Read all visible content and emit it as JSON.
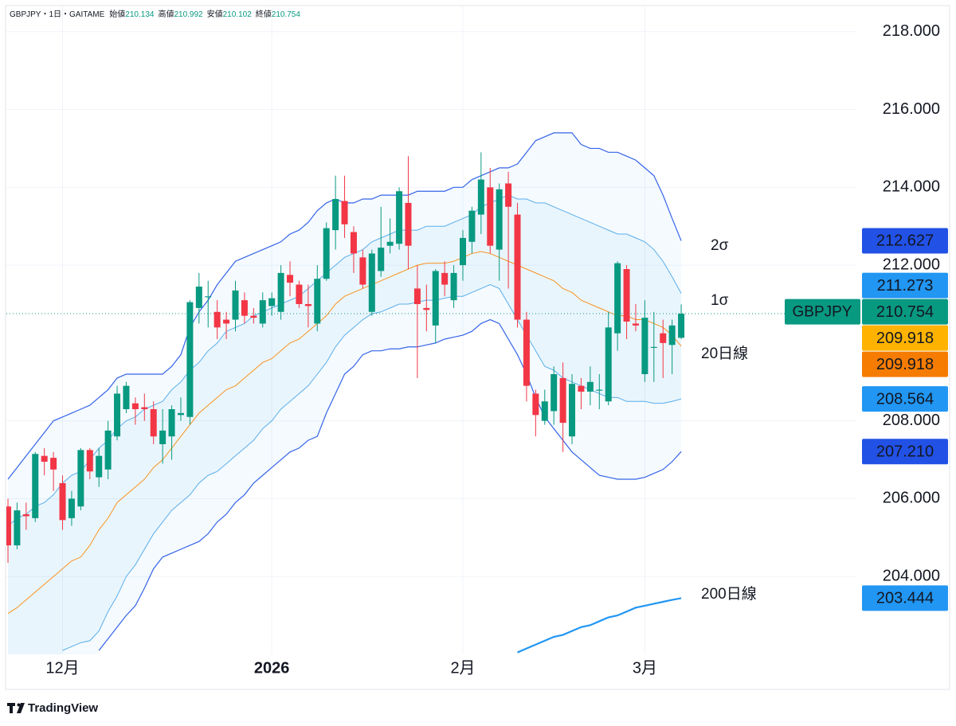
{
  "chart_data": {
    "type": "candlestick",
    "title": "GBPJPY・1日・GAITAME",
    "ohlc_legend": [
      {
        "label": "始値",
        "value": "210.134"
      },
      {
        "label": "高値",
        "value": "210.992"
      },
      {
        "label": "安値",
        "value": "210.102"
      },
      {
        "label": "終値",
        "value": "210.754"
      }
    ],
    "brand": "TradingView",
    "categories": [
      null,
      null,
      null,
      null,
      null,
      null,
      "12月",
      null,
      null,
      null,
      null,
      null,
      null,
      null,
      null,
      null,
      null,
      null,
      null,
      null,
      null,
      null,
      null,
      null,
      null,
      null,
      null,
      null,
      null,
      "2026",
      null,
      null,
      null,
      null,
      null,
      null,
      null,
      null,
      null,
      null,
      null,
      null,
      null,
      null,
      null,
      null,
      null,
      null,
      null,
      null,
      "2月",
      null,
      null,
      null,
      null,
      null,
      null,
      null,
      null,
      null,
      null,
      null,
      null,
      null,
      null,
      null,
      null,
      null,
      null,
      null,
      "3月",
      null,
      null,
      null,
      null
    ],
    "open": [
      205.8,
      204.8,
      205.6,
      205.5,
      207.1,
      207.05,
      206.4,
      205.5,
      205.8,
      207.25,
      206.55,
      206.75,
      207.6,
      208.3,
      208.45,
      208.35,
      208.3,
      207.4,
      207.6,
      208.15,
      208.1,
      210.9,
      211.2,
      210.8,
      210.6,
      210.6,
      211.1,
      210.7,
      210.5,
      210.95,
      210.8,
      211.75,
      211.5,
      211.0,
      210.5,
      211.65,
      212.9,
      213.65,
      212.85,
      212.2,
      210.8,
      211.85,
      212.5,
      212.55,
      213.6,
      211.4,
      210.9,
      210.45,
      211.8,
      211.1,
      212.0,
      212.6,
      213.3,
      214.0,
      212.4,
      214.1,
      213.3,
      210.6,
      208.7,
      208.0,
      208.25,
      209.1,
      207.6,
      208.9,
      208.75,
      208.8,
      208.5,
      210.25,
      211.9,
      210.5,
      209.2,
      209.9,
      210.25,
      209.95,
      210.134
    ],
    "high": [
      206.0,
      205.9,
      205.9,
      207.2,
      207.3,
      207.2,
      206.6,
      206.2,
      207.3,
      207.3,
      207.3,
      208.0,
      208.9,
      209.0,
      208.6,
      208.7,
      208.5,
      208.3,
      208.4,
      208.6,
      211.1,
      211.8,
      211.6,
      211.1,
      210.8,
      211.6,
      211.3,
      210.9,
      211.3,
      211.3,
      212.0,
      212.1,
      211.6,
      211.5,
      212.0,
      213.1,
      214.3,
      214.3,
      213.0,
      212.4,
      212.4,
      213.5,
      213.2,
      214.0,
      214.8,
      212.0,
      211.5,
      211.9,
      212.1,
      212.0,
      212.9,
      213.5,
      214.9,
      214.5,
      214.1,
      214.4,
      213.6,
      210.8,
      208.8,
      208.8,
      209.4,
      209.5,
      209.2,
      209.1,
      209.4,
      209.2,
      210.8,
      212.1,
      212.0,
      211.0,
      211.1,
      210.8,
      210.6,
      210.6,
      210.992
    ],
    "low": [
      204.35,
      204.7,
      205.2,
      205.4,
      206.6,
      206.2,
      205.2,
      205.3,
      205.7,
      206.5,
      206.3,
      206.5,
      207.5,
      208.2,
      207.9,
      208.0,
      207.4,
      206.9,
      207.0,
      208.0,
      207.9,
      210.5,
      210.4,
      210.1,
      210.1,
      210.3,
      210.5,
      210.5,
      210.4,
      210.7,
      210.6,
      211.2,
      210.9,
      210.4,
      210.3,
      211.6,
      212.4,
      212.7,
      211.8,
      211.4,
      210.7,
      211.7,
      212.3,
      212.4,
      211.9,
      209.1,
      210.3,
      210.0,
      211.2,
      210.9,
      211.6,
      212.3,
      212.8,
      212.3,
      211.6,
      211.4,
      210.4,
      208.5,
      207.6,
      207.9,
      207.9,
      207.2,
      207.4,
      208.3,
      208.4,
      208.3,
      208.4,
      209.8,
      210.1,
      210.3,
      209.0,
      209.0,
      209.1,
      209.2,
      210.102
    ],
    "close": [
      204.8,
      205.7,
      205.55,
      207.15,
      206.95,
      206.75,
      205.45,
      206.0,
      207.25,
      206.7,
      207.1,
      207.75,
      208.7,
      208.9,
      208.3,
      208.3,
      207.6,
      207.75,
      208.3,
      208.2,
      211.05,
      211.45,
      211.2,
      210.4,
      210.5,
      211.35,
      210.7,
      210.65,
      211.1,
      211.15,
      211.8,
      211.55,
      211.0,
      210.95,
      211.65,
      212.95,
      213.7,
      213.05,
      212.3,
      211.5,
      212.3,
      212.45,
      212.6,
      213.9,
      212.5,
      211.0,
      210.85,
      211.85,
      211.5,
      211.8,
      212.7,
      213.4,
      214.2,
      212.5,
      213.95,
      213.5,
      210.6,
      208.9,
      208.15,
      208.5,
      209.2,
      207.95,
      208.95,
      208.75,
      209.0,
      208.8,
      210.4,
      212.05,
      210.55,
      210.45,
      210.65,
      209.9,
      210.0,
      210.45,
      210.754
    ],
    "up_color": "#089981",
    "down_color": "#f23645",
    "series": [
      {
        "color": "#3563e9",
        "width": 1.2,
        "values": [
          206.5,
          206.8,
          207.1,
          207.4,
          207.7,
          208.0,
          208.1,
          208.2,
          208.3,
          208.4,
          208.6,
          208.8,
          209.1,
          209.2,
          209.2,
          209.2,
          209.2,
          209.2,
          209.4,
          209.7,
          210.4,
          210.8,
          211.1,
          211.5,
          211.8,
          212.1,
          212.2,
          212.3,
          212.4,
          212.5,
          212.6,
          212.8,
          212.9,
          213.1,
          213.4,
          213.6,
          213.7,
          213.6,
          213.6,
          213.7,
          213.7,
          213.8,
          213.8,
          213.8,
          213.8,
          213.9,
          213.9,
          213.9,
          213.9,
          214.0,
          214.0,
          214.2,
          214.3,
          214.4,
          214.5,
          214.5,
          214.6,
          214.9,
          215.2,
          215.3,
          215.4,
          215.4,
          215.4,
          215.1,
          215.0,
          215.0,
          214.9,
          214.9,
          214.8,
          214.7,
          214.5,
          214.3,
          213.8,
          213.2,
          212.627
        ]
      },
      {
        "color": "#5aaeea",
        "width": 1,
        "values": [
          205.3,
          205.5,
          205.6,
          205.8,
          205.9,
          206.1,
          206.4,
          206.6,
          206.7,
          207.0,
          207.3,
          207.5,
          207.8,
          208.0,
          208.1,
          208.3,
          208.4,
          208.5,
          208.8,
          209.0,
          209.3,
          209.5,
          209.8,
          210.0,
          210.3,
          210.4,
          210.5,
          210.7,
          210.8,
          210.9,
          211.0,
          211.1,
          211.2,
          211.4,
          211.6,
          211.8,
          212.0,
          212.2,
          212.3,
          212.4,
          212.6,
          212.7,
          212.8,
          212.9,
          212.9,
          212.9,
          213.0,
          213.0,
          213.0,
          213.1,
          213.2,
          213.3,
          213.5,
          213.6,
          213.7,
          213.8,
          213.7,
          213.7,
          213.6,
          213.6,
          213.5,
          213.4,
          213.3,
          213.2,
          213.1,
          213.0,
          212.9,
          212.8,
          212.8,
          212.7,
          212.6,
          212.4,
          212.1,
          211.7,
          211.273
        ]
      },
      {
        "color": "#f7931e",
        "width": 1,
        "values": [
          203.05,
          203.2,
          203.4,
          203.6,
          203.8,
          204.0,
          204.2,
          204.4,
          204.5,
          204.8,
          205.2,
          205.5,
          205.9,
          206.1,
          206.3,
          206.5,
          206.8,
          207.0,
          207.3,
          207.6,
          207.9,
          208.2,
          208.4,
          208.6,
          208.8,
          208.9,
          209.1,
          209.3,
          209.5,
          209.6,
          209.8,
          210.0,
          210.1,
          210.3,
          210.5,
          210.7,
          211.0,
          211.2,
          211.3,
          211.4,
          211.5,
          211.6,
          211.7,
          211.8,
          211.9,
          212.0,
          212.05,
          212.05,
          212.05,
          212.1,
          212.2,
          212.3,
          212.35,
          212.3,
          212.2,
          212.1,
          212.0,
          211.9,
          211.8,
          211.7,
          211.6,
          211.4,
          211.3,
          211.1,
          211.0,
          210.9,
          210.8,
          210.7,
          210.7,
          210.6,
          210.6,
          210.5,
          210.4,
          210.2,
          209.918
        ]
      },
      {
        "color": "#5aaeea",
        "width": 1,
        "values": [
          null,
          null,
          null,
          null,
          null,
          null,
          202.1,
          202.2,
          202.3,
          202.35,
          202.6,
          203.1,
          203.5,
          204.0,
          204.3,
          204.7,
          205.1,
          205.4,
          205.7,
          205.9,
          206.1,
          206.4,
          206.6,
          206.7,
          206.9,
          207.1,
          207.3,
          207.5,
          207.8,
          208.0,
          208.3,
          208.5,
          208.7,
          208.9,
          209.2,
          209.5,
          209.9,
          210.2,
          210.4,
          210.6,
          210.75,
          210.8,
          210.9,
          211.0,
          211.0,
          211.05,
          211.1,
          211.1,
          211.15,
          211.2,
          211.2,
          211.3,
          211.4,
          211.5,
          211.4,
          211.0,
          210.6,
          210.2,
          209.8,
          209.4,
          209.3,
          209.1,
          209.0,
          208.9,
          208.8,
          208.7,
          208.6,
          208.6,
          208.5,
          208.5,
          208.5,
          208.45,
          208.45,
          208.5,
          208.564
        ]
      },
      {
        "color": "#3563e9",
        "width": 1.2,
        "values": [
          null,
          null,
          null,
          null,
          null,
          null,
          null,
          null,
          null,
          null,
          202.1,
          202.4,
          202.7,
          203.0,
          203.25,
          203.7,
          204.2,
          204.5,
          204.6,
          204.7,
          204.8,
          204.9,
          205.1,
          205.4,
          205.6,
          205.9,
          206.1,
          206.4,
          206.6,
          206.8,
          207.0,
          207.2,
          207.3,
          207.5,
          207.6,
          208.2,
          208.7,
          209.2,
          209.4,
          209.7,
          209.8,
          209.8,
          209.85,
          209.85,
          209.9,
          209.9,
          209.95,
          210.0,
          210.1,
          210.15,
          210.2,
          210.3,
          210.5,
          210.6,
          210.5,
          210.1,
          209.7,
          209.2,
          208.6,
          208.1,
          207.8,
          207.5,
          207.2,
          207.0,
          206.8,
          206.6,
          206.55,
          206.5,
          206.5,
          206.5,
          206.55,
          206.65,
          206.75,
          206.95,
          207.21
        ]
      },
      {
        "color": "#2196f3",
        "width": 2.2,
        "values": [
          null,
          null,
          null,
          null,
          null,
          null,
          null,
          null,
          null,
          null,
          null,
          null,
          null,
          null,
          null,
          null,
          null,
          null,
          null,
          null,
          null,
          null,
          null,
          null,
          null,
          null,
          null,
          null,
          null,
          null,
          null,
          null,
          null,
          null,
          null,
          null,
          null,
          null,
          null,
          null,
          null,
          null,
          null,
          null,
          null,
          null,
          null,
          null,
          null,
          null,
          null,
          null,
          null,
          null,
          null,
          null,
          202.05,
          202.15,
          202.25,
          202.35,
          202.45,
          202.5,
          202.6,
          202.7,
          202.75,
          202.85,
          202.95,
          203.0,
          203.1,
          203.2,
          203.25,
          203.3,
          203.35,
          203.4,
          203.444
        ]
      }
    ],
    "annotations": [
      {
        "text": "2σ",
        "color": "#3563e9"
      },
      {
        "text": "1σ",
        "color": "#3563e9"
      },
      {
        "text": "20日線",
        "color": "#f57c00"
      },
      {
        "text": "200日線",
        "color": "#3563e9"
      }
    ],
    "price_markers": [
      {
        "value": 212.627,
        "label": "212.627",
        "color": "#2251e6",
        "text_color": "#ffffff"
      },
      {
        "value": 211.273,
        "label": "211.273",
        "color": "#2196f3",
        "text_color": "#ffffff"
      },
      {
        "value": 210.754,
        "label": "210.754",
        "name": "GBPJPY",
        "color": "#089981",
        "text_color": "#ffffff"
      },
      {
        "value": 209.918,
        "label": "209.918",
        "color": "#ffb300",
        "text_color": "#131722"
      },
      {
        "value": 209.918,
        "label": "209.918",
        "color": "#f57c00",
        "text_color": "#ffffff"
      },
      {
        "value": 208.564,
        "label": "208.564",
        "color": "#2196f3",
        "text_color": "#ffffff"
      },
      {
        "value": 207.21,
        "label": "207.210",
        "color": "#2251e6",
        "text_color": "#ffffff"
      },
      {
        "value": 203.444,
        "label": "203.444",
        "color": "#2196f3",
        "text_color": "#ffffff"
      }
    ],
    "ylim": [
      202,
      218.65
    ],
    "yticks": [
      {
        "value": 204,
        "label": "204.000"
      },
      {
        "value": 206,
        "label": "206.000"
      },
      {
        "value": 208,
        "label": "208.000"
      },
      {
        "value": 212,
        "label": "212.000"
      },
      {
        "value": 214,
        "label": "214.000"
      },
      {
        "value": 216,
        "label": "216.000"
      },
      {
        "value": 218,
        "label": "218.000"
      }
    ],
    "grid": true
  }
}
